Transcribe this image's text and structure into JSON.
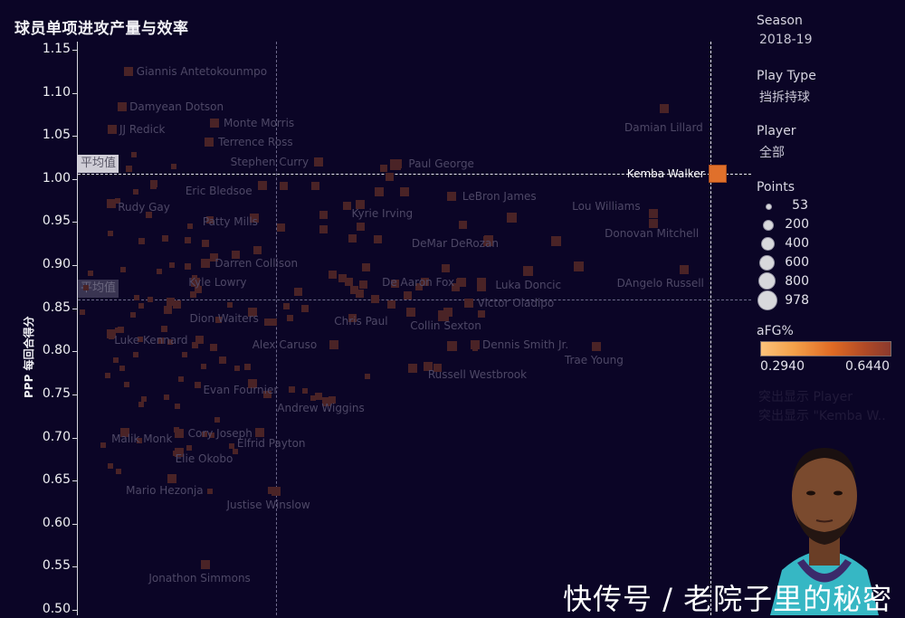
{
  "title": "球员单项进攻产量与效率",
  "axis": {
    "y_title": "PPP 每回合得分",
    "y_ticks": [
      "1.15",
      "1.10",
      "1.05",
      "1.00",
      "0.95",
      "0.90",
      "0.85",
      "0.80",
      "0.75",
      "0.70",
      "0.65",
      "0.60",
      "0.55",
      "0.50"
    ]
  },
  "reference": {
    "avg_label_top": "平均值",
    "avg_label_bottom": "平均值"
  },
  "highlight": {
    "player": "Kemba Walker"
  },
  "filters": {
    "season_label": "Season",
    "season_value": "2018-19",
    "playtype_label": "Play Type",
    "playtype_value": "挡拆持球",
    "player_label": "Player",
    "player_value": "全部"
  },
  "legend": {
    "points_label": "Points",
    "sizes": [
      "53",
      "200",
      "400",
      "600",
      "800",
      "978"
    ],
    "color_label": "aFG%",
    "color_min": "0.2940",
    "color_max": "0.6440",
    "highlight_label": "突出显示 Player",
    "highlight_value": "突出显示 \"Kemba W..",
    "color_low": "#fcc27a",
    "color_high": "#8b3a2e",
    "highlight_color": "#e0702b"
  },
  "watermark": "快传号 / 老院子里的秘密",
  "chart_data": {
    "type": "scatter",
    "title": "球员单项进攻产量与效率",
    "xlabel": "",
    "ylabel": "PPP 每回合得分",
    "ylim": [
      0.5,
      1.16
    ],
    "x_axis_note": "x axis unlabeled; x values given as fraction of plot width (0 = left axis, 1 = right edge of plot area)",
    "reference_lines": {
      "y_average": 1.006,
      "y_average_2": 0.862,
      "x_average_frac": 0.3,
      "x_highlight_frac": 0.95
    },
    "size_legend": [
      53,
      200,
      400,
      600,
      800,
      978
    ],
    "color_legend": {
      "metric": "aFG%",
      "min": 0.294,
      "max": 0.644
    },
    "labeled_points": [
      {
        "name": "Giannis Antetokounmpo",
        "x": 0.075,
        "y": 1.125
      },
      {
        "name": "Damyean Dotson",
        "x": 0.066,
        "y": 1.084
      },
      {
        "name": "JJ Redick",
        "x": 0.051,
        "y": 1.058
      },
      {
        "name": "Monte Morris",
        "x": 0.203,
        "y": 1.065
      },
      {
        "name": "Terrence Ross",
        "x": 0.195,
        "y": 1.043
      },
      {
        "name": "Stephen Curry",
        "x": 0.357,
        "y": 1.02
      },
      {
        "name": "Paul George",
        "x": 0.475,
        "y": 1.018
      },
      {
        "name": "Damian Lillard",
        "x": 0.871,
        "y": 1.082
      },
      {
        "name": "Kemba Walker",
        "x": 0.95,
        "y": 1.006
      },
      {
        "name": "Eric Bledsoe",
        "x": 0.274,
        "y": 0.993
      },
      {
        "name": "LeBron James",
        "x": 0.555,
        "y": 0.98
      },
      {
        "name": "Kyrie Irving",
        "x": 0.42,
        "y": 0.97
      },
      {
        "name": "Rudy Gay",
        "x": 0.05,
        "y": 0.972
      },
      {
        "name": "Patty Mills",
        "x": 0.262,
        "y": 0.955
      },
      {
        "name": "Lou Williams",
        "x": 0.855,
        "y": 0.96
      },
      {
        "name": "Donovan Mitchell",
        "x": 0.855,
        "y": 0.948
      },
      {
        "name": "DeMar DeRozan",
        "x": 0.61,
        "y": 0.93
      },
      {
        "name": "Darren Collison",
        "x": 0.19,
        "y": 0.902
      },
      {
        "name": "De Aaron Fox",
        "x": 0.57,
        "y": 0.88
      },
      {
        "name": "Luka Doncic",
        "x": 0.6,
        "y": 0.88
      },
      {
        "name": "Kyle Lowry",
        "x": 0.175,
        "y": 0.88
      },
      {
        "name": "DAngelo Russell",
        "x": 0.9,
        "y": 0.895
      },
      {
        "name": "Victor Oladipo",
        "x": 0.58,
        "y": 0.856
      },
      {
        "name": "Chris Paul",
        "x": 0.495,
        "y": 0.845
      },
      {
        "name": "Dion Waiters",
        "x": 0.26,
        "y": 0.845
      },
      {
        "name": "Luke Kennard",
        "x": 0.05,
        "y": 0.82
      },
      {
        "name": "Collin Sexton",
        "x": 0.55,
        "y": 0.845
      },
      {
        "name": "Alex Caruso",
        "x": 0.38,
        "y": 0.808
      },
      {
        "name": "Dennis Smith Jr.",
        "x": 0.59,
        "y": 0.808
      },
      {
        "name": "Trae Young",
        "x": 0.77,
        "y": 0.806
      },
      {
        "name": "Russell Westbrook",
        "x": 0.52,
        "y": 0.782
      },
      {
        "name": "Evan Fournier",
        "x": 0.26,
        "y": 0.763
      },
      {
        "name": "Andrew Wiggins",
        "x": 0.37,
        "y": 0.742
      },
      {
        "name": "Malik Monk",
        "x": 0.07,
        "y": 0.706
      },
      {
        "name": "Cory Joseph",
        "x": 0.15,
        "y": 0.705
      },
      {
        "name": "Elfrid Payton",
        "x": 0.27,
        "y": 0.706
      },
      {
        "name": "Elie Okobo",
        "x": 0.15,
        "y": 0.683
      },
      {
        "name": "Mario Hezonja",
        "x": 0.14,
        "y": 0.652
      },
      {
        "name": "Justise Winslow",
        "x": 0.295,
        "y": 0.638
      },
      {
        "name": "Jonathon Simmons",
        "x": 0.19,
        "y": 0.553
      }
    ]
  }
}
